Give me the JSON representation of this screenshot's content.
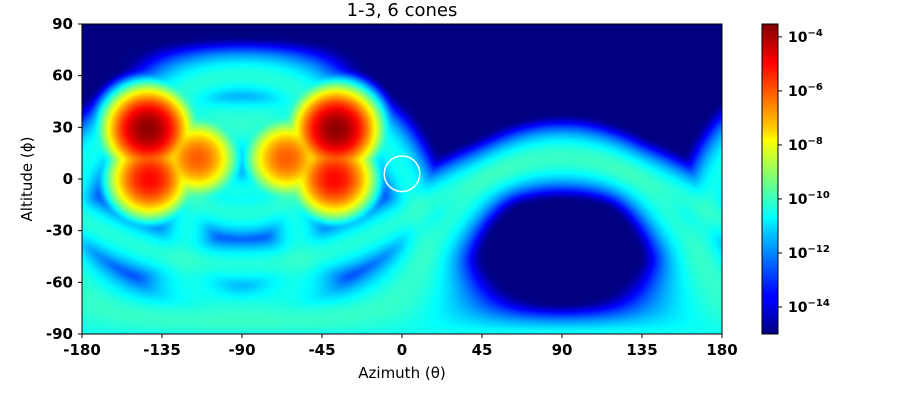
{
  "chart_data": {
    "type": "heatmap",
    "title": "1-3, 6 cones",
    "xlabel": "Azimuth (θ)",
    "ylabel": "Altitude (ϕ)",
    "xlim": [
      -180,
      180
    ],
    "ylim": [
      -90,
      90
    ],
    "xticks": [
      -180,
      -135,
      -90,
      -45,
      0,
      45,
      90,
      135,
      180
    ],
    "yticks": [
      -90,
      -60,
      -30,
      0,
      30,
      60,
      90
    ],
    "xtick_labels": [
      "-180",
      "-135",
      "-90",
      "-45",
      "0",
      "45",
      "90",
      "135",
      "180"
    ],
    "ytick_labels": [
      "-90",
      "-60",
      "-30",
      "0",
      "30",
      "60",
      "90"
    ],
    "colormap": "jet",
    "color_scale": "log",
    "colorbar": {
      "range": [
        1e-15,
        0.0003
      ],
      "ticks": [
        {
          "value": 0.0001,
          "base": "10",
          "exp": "−4"
        },
        {
          "value": 1e-06,
          "base": "10",
          "exp": "−6"
        },
        {
          "value": 1e-08,
          "base": "10",
          "exp": "−8"
        },
        {
          "value": 1e-10,
          "base": "10",
          "exp": "−10"
        },
        {
          "value": 1e-12,
          "base": "10",
          "exp": "−12"
        },
        {
          "value": 1e-14,
          "base": "10",
          "exp": "−14"
        }
      ]
    },
    "background_value": 1e-15,
    "ring_bands": [
      {
        "center_x": -90,
        "center_y": 20,
        "radius_deg": 40,
        "angle_y_scale": 1.0,
        "peak": 5e-11
      },
      {
        "center_x": -90,
        "center_y": 15,
        "radius_deg": 22,
        "angle_y_scale": 1.0,
        "peak": 3e-11
      },
      {
        "center_x": -125,
        "center_y": -20,
        "radius_deg": 60,
        "angle_y_scale": 1.0,
        "peak": 3e-11
      },
      {
        "center_x": -55,
        "center_y": -20,
        "radius_deg": 60,
        "angle_y_scale": 1.0,
        "peak": 3e-11
      },
      {
        "center_x": 90,
        "center_y": -60,
        "radius_deg": 70,
        "angle_y_scale": 1.0,
        "peak": 5e-11
      },
      {
        "center_x": 90,
        "center_y": -40,
        "radius_deg": 55,
        "angle_y_scale": 1.0,
        "peak": 5e-11
      }
    ],
    "hot_spots": [
      {
        "x": -143,
        "y": 29,
        "value": 0.0002
      },
      {
        "x": -37,
        "y": 29,
        "value": 0.0002
      },
      {
        "x": -142,
        "y": 0,
        "value": 1e-05
      },
      {
        "x": -38,
        "y": 0,
        "value": 1e-05
      },
      {
        "x": -115,
        "y": 12,
        "value": 1e-06
      },
      {
        "x": -65,
        "y": 12,
        "value": 1e-06
      }
    ],
    "marker": {
      "shape": "circle",
      "x": 0,
      "y": 3,
      "radius_deg": 10,
      "color": "#ffffff"
    }
  }
}
